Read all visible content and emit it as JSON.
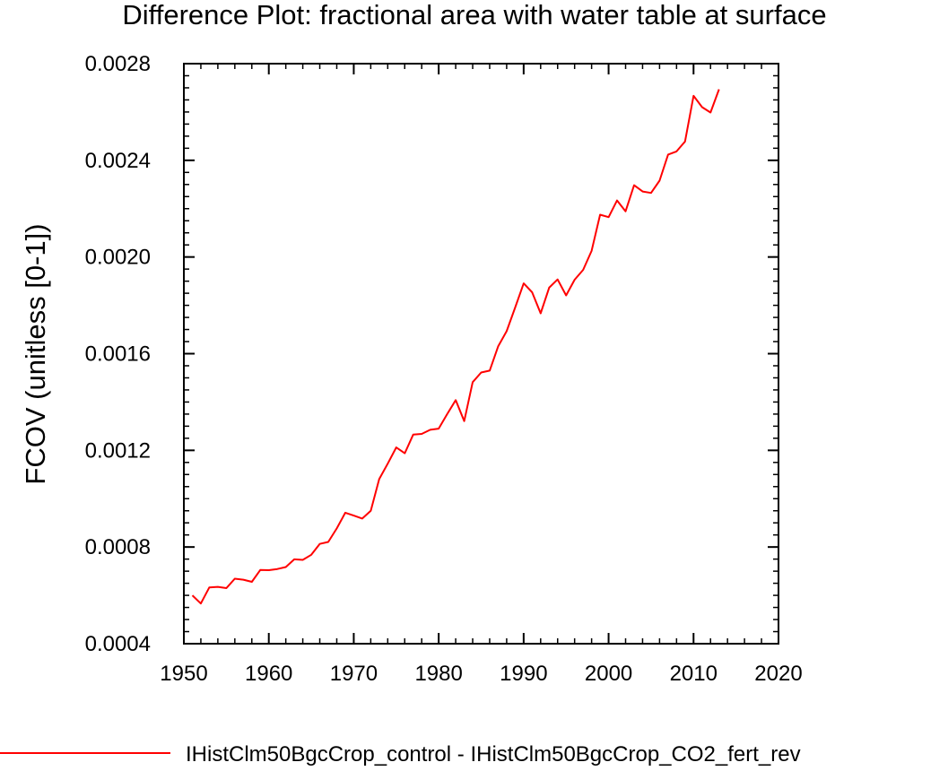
{
  "chart_data": {
    "type": "line",
    "title": "Difference Plot: fractional area with water table at surface",
    "xlabel": "",
    "ylabel": "FCOV  (unitless [0-1])",
    "xlim": [
      1950,
      2020
    ],
    "ylim": [
      0.0004,
      0.0028
    ],
    "x_ticks": [
      1950,
      1960,
      1970,
      1980,
      1990,
      2000,
      2010,
      2020
    ],
    "x_tick_labels": [
      "1950",
      "1960",
      "1970",
      "1980",
      "1990",
      "2000",
      "2010",
      "2020"
    ],
    "y_ticks": [
      0.0004,
      0.0008,
      0.0012,
      0.0016,
      0.002,
      0.0024,
      0.0028
    ],
    "y_tick_labels": [
      "0.0004",
      "0.0008",
      "0.0012",
      "0.0016",
      "0.0020",
      "0.0024",
      "0.0028"
    ],
    "x_minor_step": 2,
    "y_minor_step": 5e-05,
    "grid": false,
    "legend_position": "bottom",
    "series": [
      {
        "name": "IHistClm50BgcCrop_control - IHistClm50BgcCrop_CO2_fert_rev",
        "color": "#ff0000",
        "x": [
          1951,
          1952,
          1953,
          1954,
          1955,
          1956,
          1957,
          1958,
          1959,
          1960,
          1961,
          1962,
          1963,
          1964,
          1965,
          1966,
          1967,
          1968,
          1969,
          1970,
          1971,
          1972,
          1973,
          1974,
          1975,
          1976,
          1977,
          1978,
          1979,
          1980,
          1981,
          1982,
          1983,
          1984,
          1985,
          1986,
          1987,
          1988,
          1989,
          1990,
          1991,
          1992,
          1993,
          1994,
          1995,
          1996,
          1997,
          1998,
          1999,
          2000,
          2001,
          2002,
          2003,
          2004,
          2005,
          2006,
          2007,
          2008,
          2009,
          2010,
          2011,
          2012,
          2013
        ],
        "values": [
          0.0006,
          0.000566,
          0.000633,
          0.000635,
          0.00063,
          0.000669,
          0.000665,
          0.000656,
          0.000705,
          0.000704,
          0.000709,
          0.000717,
          0.000749,
          0.000747,
          0.000768,
          0.000813,
          0.000821,
          0.000877,
          0.000942,
          0.00093,
          0.000918,
          0.00095,
          0.001081,
          0.001145,
          0.001212,
          0.001188,
          0.001265,
          0.001268,
          0.001285,
          0.00129,
          0.00135,
          0.001408,
          0.001321,
          0.001482,
          0.001522,
          0.00153,
          0.00163,
          0.001693,
          0.001791,
          0.001891,
          0.001854,
          0.001767,
          0.001873,
          0.001907,
          0.001841,
          0.001906,
          0.001947,
          0.002025,
          0.002175,
          0.002165,
          0.002234,
          0.002189,
          0.002297,
          0.002271,
          0.002265,
          0.002316,
          0.002424,
          0.002437,
          0.002478,
          0.002667,
          0.00262,
          0.002598,
          0.002694
        ]
      }
    ]
  }
}
